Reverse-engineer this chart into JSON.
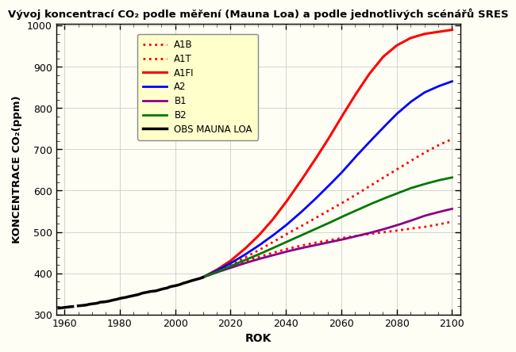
{
  "title": "Vývoj koncentrací CO₂ podle měření (Mauna Loa) a podle jednotlivých scénářů SRES",
  "xlabel": "ROK",
  "ylabel": "KONCENTRACE CO₂(ppm)",
  "xlim": [
    1957,
    2103
  ],
  "ylim": [
    300,
    1005
  ],
  "xticks": [
    1960,
    1980,
    2000,
    2020,
    2040,
    2060,
    2080,
    2100
  ],
  "yticks": [
    300,
    400,
    500,
    600,
    700,
    800,
    900,
    1000
  ],
  "plot_bg": "#fffef5",
  "legend_bg": "#ffffcc",
  "obs_color": "#000000",
  "A1B_color": "#ff0000",
  "A1T_color": "#ff0000",
  "A1FI_color": "#ff0000",
  "A2_color": "#0000ff",
  "B1_color": "#880088",
  "B2_color": "#007700",
  "scenarios": {
    "years": [
      2010,
      2015,
      2020,
      2025,
      2030,
      2035,
      2040,
      2045,
      2050,
      2055,
      2060,
      2065,
      2070,
      2075,
      2080,
      2085,
      2090,
      2095,
      2100
    ],
    "A1B": [
      390,
      405,
      420,
      437,
      455,
      474,
      494,
      512,
      531,
      550,
      569,
      589,
      610,
      631,
      651,
      672,
      692,
      710,
      725
    ],
    "A1T": [
      390,
      403,
      416,
      428,
      439,
      449,
      458,
      466,
      473,
      479,
      485,
      490,
      495,
      499,
      503,
      508,
      512,
      518,
      525
    ],
    "A1FI": [
      390,
      408,
      430,
      458,
      490,
      528,
      572,
      620,
      670,
      722,
      778,
      832,
      882,
      924,
      952,
      970,
      980,
      985,
      990
    ],
    "A2": [
      390,
      406,
      424,
      444,
      466,
      490,
      516,
      545,
      576,
      609,
      643,
      681,
      717,
      752,
      786,
      815,
      838,
      853,
      865
    ],
    "B1": [
      390,
      402,
      413,
      424,
      434,
      443,
      452,
      460,
      467,
      474,
      481,
      489,
      497,
      506,
      516,
      527,
      539,
      548,
      556
    ],
    "B2": [
      390,
      403,
      417,
      431,
      445,
      460,
      475,
      490,
      505,
      520,
      536,
      551,
      566,
      580,
      593,
      606,
      616,
      625,
      632
    ]
  },
  "obs_years": [
    1958,
    1959,
    1960,
    1961,
    1962,
    1963,
    1964,
    1965,
    1966,
    1967,
    1968,
    1969,
    1970,
    1971,
    1972,
    1973,
    1974,
    1975,
    1976,
    1977,
    1978,
    1979,
    1980,
    1981,
    1982,
    1983,
    1984,
    1985,
    1986,
    1987,
    1988,
    1989,
    1990,
    1991,
    1992,
    1993,
    1994,
    1995,
    1996,
    1997,
    1998,
    1999,
    2000,
    2001,
    2002,
    2003,
    2004,
    2005,
    2006,
    2007,
    2008,
    2009,
    2010
  ],
  "obs_values": [
    315.3,
    315.9,
    316.9,
    317.6,
    318.5,
    319.0,
    319.9,
    320.8,
    321.4,
    322.1,
    323.0,
    324.6,
    325.7,
    326.3,
    327.5,
    329.7,
    330.1,
    331.0,
    332.1,
    333.8,
    335.4,
    336.8,
    338.7,
    340.1,
    341.1,
    342.8,
    344.3,
    345.7,
    347.1,
    348.9,
    351.3,
    352.8,
    354.0,
    355.5,
    356.3,
    357.0,
    358.9,
    360.9,
    362.6,
    363.8,
    366.6,
    368.3,
    369.5,
    371.1,
    373.2,
    375.8,
    377.5,
    379.8,
    381.9,
    383.8,
    385.6,
    387.4,
    389.9
  ]
}
